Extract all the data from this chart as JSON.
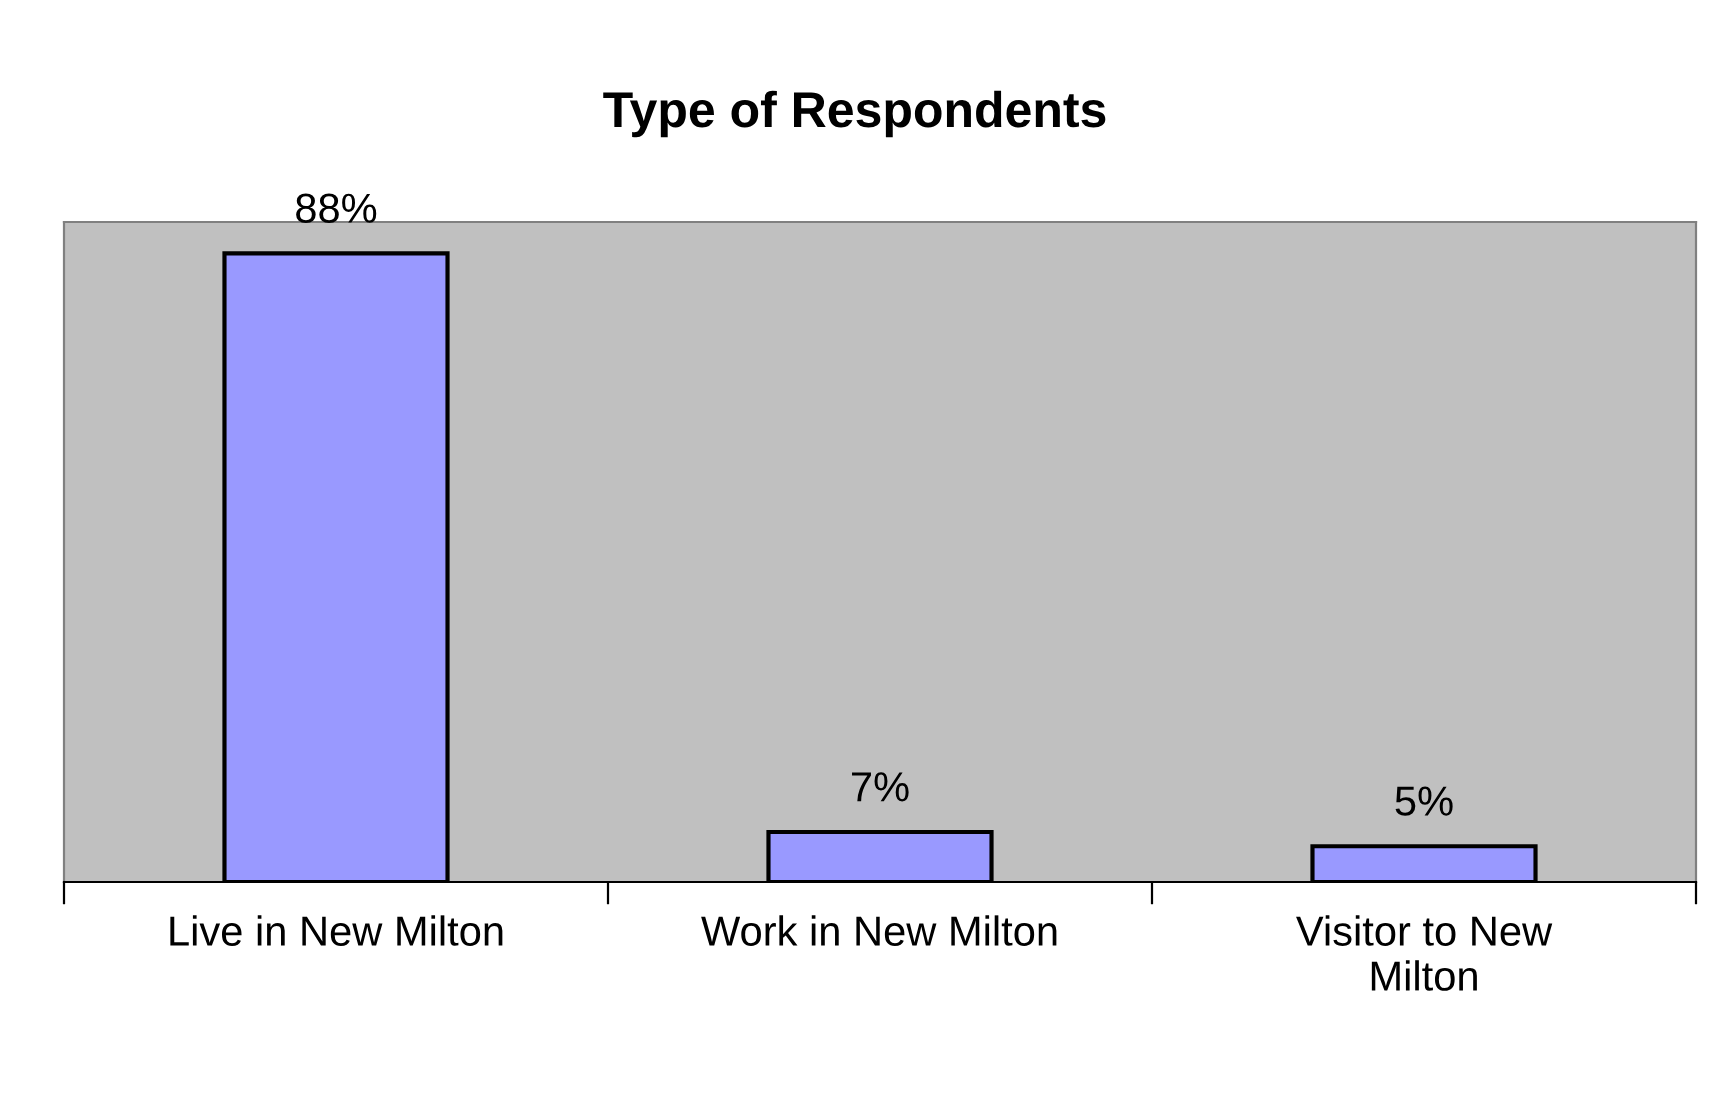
{
  "chart_data": {
    "type": "bar",
    "title": "Type of Respondents",
    "categories": [
      "Live in New Milton",
      "Work in New Milton",
      "Visitor to New\nMilton"
    ],
    "values": [
      88,
      7,
      5
    ],
    "color": "#9999ff",
    "value_labels": [
      "88%",
      "7%",
      "5%"
    ],
    "tick_labels": "x",
    "grid": false,
    "legend": false
  }
}
